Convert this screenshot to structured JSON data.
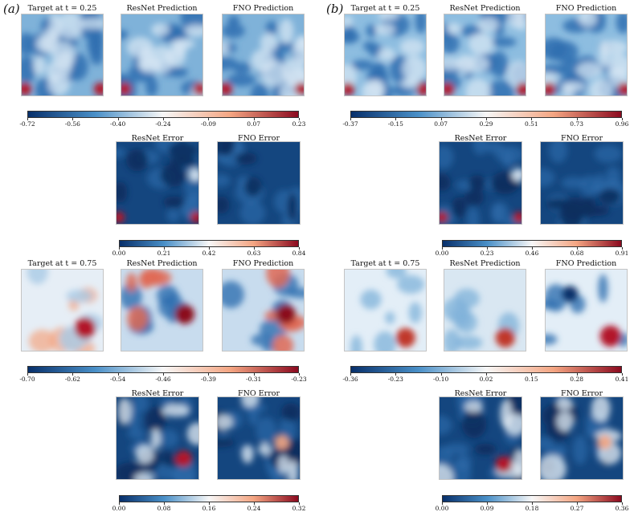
{
  "panels": [
    {
      "label": "(a)",
      "blocks": [
        {
          "titles": [
            "Target at t = 0.25",
            "ResNet Prediction",
            "FNO Prediction"
          ],
          "colorbar": [
            "-0.72",
            "-0.56",
            "-0.40",
            "-0.24",
            "-0.09",
            "0.07",
            "0.23"
          ],
          "error_titles": [
            "ResNet Error",
            "FNO Error"
          ],
          "error_colorbar": [
            "0.00",
            "0.21",
            "0.42",
            "0.63",
            "0.84"
          ]
        },
        {
          "titles": [
            "Target at t = 0.75",
            "ResNet Prediction",
            "FNO Prediction"
          ],
          "colorbar": [
            "-0.70",
            "-0.62",
            "-0.54",
            "-0.46",
            "-0.39",
            "-0.31",
            "-0.23"
          ],
          "error_titles": [
            "ResNet Error",
            "FNO Error"
          ],
          "error_colorbar": [
            "0.00",
            "0.08",
            "0.16",
            "0.24",
            "0.32"
          ]
        }
      ]
    },
    {
      "label": "(b)",
      "blocks": [
        {
          "titles": [
            "Target at t = 0.25",
            "ResNet Prediction",
            "FNO Prediction"
          ],
          "colorbar": [
            "-0.37",
            "-0.15",
            "0.07",
            "0.29",
            "0.51",
            "0.73",
            "0.96"
          ],
          "error_titles": [
            "ResNet Error",
            "FNO Error"
          ],
          "error_colorbar": [
            "0.00",
            "0.23",
            "0.46",
            "0.68",
            "0.91"
          ]
        },
        {
          "titles": [
            "Target at t = 0.75",
            "ResNet Prediction",
            "FNO Prediction"
          ],
          "colorbar": [
            "-0.36",
            "-0.23",
            "-0.10",
            "0.02",
            "0.15",
            "0.28",
            "0.41"
          ],
          "error_titles": [
            "ResNet Error",
            "FNO Error"
          ],
          "error_colorbar": [
            "0.00",
            "0.09",
            "0.18",
            "0.27",
            "0.36"
          ]
        }
      ]
    }
  ],
  "colormap": {
    "low": "#08306b",
    "mid_low": "#4a90c8",
    "mid": "#f7f7f7",
    "mid_high": "#f4a582",
    "high": "#8b0a1f"
  }
}
